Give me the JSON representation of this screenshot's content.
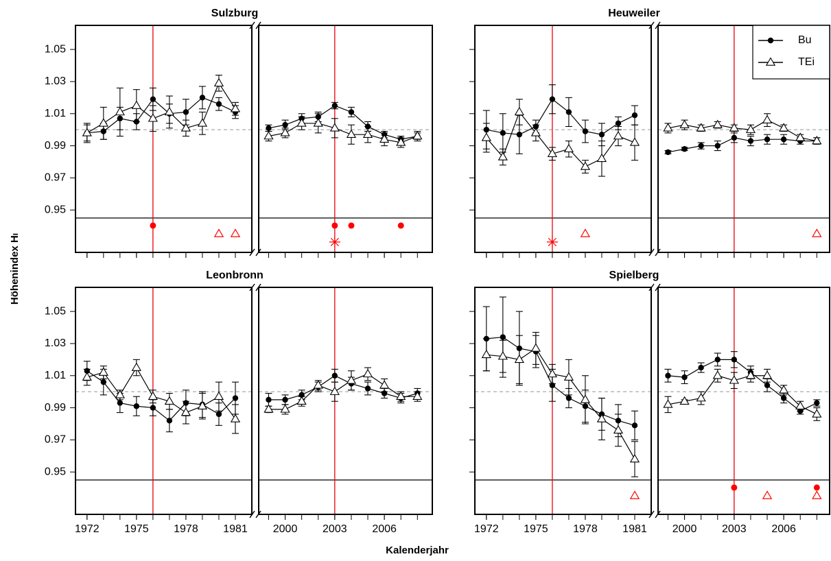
{
  "ylabel": "Höhenindex Hₗ",
  "xlabel": "Kalenderjahr",
  "chart_data": [
    {
      "type": "line",
      "title": "Sulzburg",
      "x": [
        1972,
        1973,
        1974,
        1975,
        1976,
        1977,
        1978,
        1979,
        1980,
        1981,
        1999,
        2000,
        2001,
        2002,
        2003,
        2004,
        2005,
        2006,
        2007,
        2008
      ],
      "xlim": [
        [
          1971.3,
          1982.0
        ],
        [
          1998.4,
          2008.9
        ]
      ],
      "xticks": [
        [
          1972,
          1975,
          1978,
          1981
        ],
        [
          2000,
          2003,
          2006
        ]
      ],
      "ylim": [
        0.9236,
        1.065
      ],
      "yticks": [
        0.95,
        0.97,
        0.99,
        1.01,
        1.03,
        1.05
      ],
      "ytick_labels": true,
      "xtick_labels": false,
      "reference_line": 1.0,
      "threshold_line": 0.945,
      "vlines": [
        1976,
        2003
      ],
      "vline_color": "#e8000b",
      "series": [
        {
          "marker": "circle",
          "color": "#000000",
          "values": [
            0.998,
            0.999,
            1.007,
            1.005,
            1.019,
            1.01,
            1.011,
            1.02,
            1.016,
            1.011,
            1.001,
            1.003,
            1.007,
            1.008,
            1.015,
            1.011,
            1.002,
            0.997,
            0.994,
            0.996
          ],
          "errors": [
            0.005,
            0.005,
            0.007,
            0.005,
            0.007,
            0.006,
            0.008,
            0.007,
            0.004,
            0.004,
            0.002,
            0.003,
            0.003,
            0.003,
            0.002,
            0.003,
            0.003,
            0.002,
            0.002,
            0.002
          ]
        },
        {
          "marker": "triangle",
          "color": "#000000",
          "values": [
            0.998,
            1.004,
            1.011,
            1.015,
            1.007,
            1.011,
            1.001,
            1.004,
            1.029,
            1.013,
            0.996,
            0.998,
            1.004,
            1.004,
            1.001,
            0.997,
            0.997,
            0.994,
            0.992,
            0.996
          ],
          "errors": [
            0.006,
            0.01,
            0.015,
            0.01,
            0.008,
            0.01,
            0.005,
            0.007,
            0.005,
            0.004,
            0.003,
            0.003,
            0.004,
            0.006,
            0.006,
            0.006,
            0.005,
            0.004,
            0.003,
            0.003
          ]
        }
      ],
      "signal_color": "#ff0000",
      "signals": [
        {
          "kind": "dot",
          "years": [
            1976,
            2003,
            2004,
            2007
          ]
        },
        {
          "kind": "triangle",
          "years": [
            1980,
            1981
          ]
        },
        {
          "kind": "star",
          "years": [
            2003
          ]
        }
      ]
    },
    {
      "type": "line",
      "title": "Heuweiler",
      "x": [
        1972,
        1973,
        1974,
        1975,
        1976,
        1977,
        1978,
        1979,
        1980,
        1981,
        1999,
        2000,
        2001,
        2002,
        2003,
        2004,
        2005,
        2006,
        2007,
        2008
      ],
      "xlim": [
        [
          1971.3,
          1982.0
        ],
        [
          1998.4,
          2008.9
        ]
      ],
      "xticks": [
        [
          1972,
          1975,
          1978,
          1981
        ],
        [
          2000,
          2003,
          2006
        ]
      ],
      "ylim": [
        0.9236,
        1.065
      ],
      "yticks": [
        0.95,
        0.97,
        0.99,
        1.01,
        1.03,
        1.05
      ],
      "ytick_labels": false,
      "xtick_labels": false,
      "reference_line": 1.0,
      "threshold_line": 0.945,
      "vlines": [
        1976,
        2003
      ],
      "vline_color": "#e8000b",
      "legend": "topright",
      "series": [
        {
          "name": "Bu",
          "marker": "circle",
          "color": "#000000",
          "values": [
            1.0,
            0.998,
            0.997,
            1.002,
            1.019,
            1.011,
            0.999,
            0.997,
            1.004,
            1.009,
            0.986,
            0.988,
            0.99,
            0.99,
            0.995,
            0.993,
            0.994,
            0.994,
            0.993,
            0.993
          ],
          "errors": [
            0.012,
            0.012,
            0.012,
            0.004,
            0.009,
            0.009,
            0.007,
            0.007,
            0.004,
            0.006,
            0.001,
            0.001,
            0.002,
            0.003,
            0.003,
            0.003,
            0.003,
            0.003,
            0.002,
            0.002
          ]
        },
        {
          "name": "TEi",
          "marker": "triangle",
          "color": "#000000",
          "values": [
            0.995,
            0.983,
            1.011,
            0.998,
            0.985,
            0.988,
            0.977,
            0.982,
            0.996,
            0.992,
            1.001,
            1.003,
            1.001,
            1.003,
            1.001,
            1.0,
            1.006,
            1.001,
            0.995,
            0.993
          ],
          "errors": [
            0.009,
            0.005,
            0.008,
            0.005,
            0.004,
            0.005,
            0.004,
            0.011,
            0.006,
            0.011,
            0.003,
            0.003,
            0.002,
            0.002,
            0.002,
            0.003,
            0.004,
            0.002,
            0.002,
            0.002
          ]
        }
      ],
      "signal_color": "#ff0000",
      "signals": [
        {
          "kind": "triangle",
          "years": [
            1978,
            2008
          ]
        },
        {
          "kind": "star",
          "years": [
            1976
          ]
        }
      ]
    },
    {
      "type": "line",
      "title": "Leonbronn",
      "x": [
        1972,
        1973,
        1974,
        1975,
        1976,
        1977,
        1978,
        1979,
        1980,
        1981,
        1999,
        2000,
        2001,
        2002,
        2003,
        2004,
        2005,
        2006,
        2007,
        2008
      ],
      "xlim": [
        [
          1971.3,
          1982.0
        ],
        [
          1998.4,
          2008.9
        ]
      ],
      "xticks": [
        [
          1972,
          1975,
          1978,
          1981
        ],
        [
          2000,
          2003,
          2006
        ]
      ],
      "ylim": [
        0.9236,
        1.065
      ],
      "yticks": [
        0.95,
        0.97,
        0.99,
        1.01,
        1.03,
        1.05
      ],
      "ytick_labels": true,
      "xtick_labels": true,
      "reference_line": 1.0,
      "threshold_line": 0.945,
      "vlines": [
        1976,
        2003
      ],
      "vline_color": "#e8000b",
      "series": [
        {
          "marker": "circle",
          "color": "#000000",
          "values": [
            1.013,
            1.006,
            0.993,
            0.991,
            0.99,
            0.982,
            0.993,
            0.992,
            0.986,
            0.996,
            0.995,
            0.995,
            0.998,
            1.003,
            1.01,
            1.005,
            1.002,
            0.999,
            0.996,
            0.999
          ],
          "errors": [
            0.006,
            0.008,
            0.006,
            0.006,
            0.005,
            0.007,
            0.008,
            0.008,
            0.007,
            0.01,
            0.004,
            0.003,
            0.003,
            0.003,
            0.004,
            0.004,
            0.004,
            0.003,
            0.003,
            0.003
          ]
        },
        {
          "marker": "triangle",
          "color": "#000000",
          "values": [
            1.009,
            1.012,
            0.998,
            1.015,
            0.997,
            0.994,
            0.987,
            0.991,
            0.997,
            0.983,
            0.989,
            0.989,
            0.994,
            1.004,
            1.0,
            1.007,
            1.011,
            1.004,
            0.997,
            0.997
          ],
          "errors": [
            0.005,
            0.004,
            0.003,
            0.005,
            0.004,
            0.005,
            0.007,
            0.008,
            0.009,
            0.009,
            0.002,
            0.003,
            0.003,
            0.003,
            0.006,
            0.006,
            0.004,
            0.004,
            0.003,
            0.003
          ]
        }
      ],
      "signal_color": "#ff0000",
      "signals": []
    },
    {
      "type": "line",
      "title": "Spielberg",
      "x": [
        1972,
        1973,
        1974,
        1975,
        1976,
        1977,
        1978,
        1979,
        1980,
        1981,
        1999,
        2000,
        2001,
        2002,
        2003,
        2004,
        2005,
        2006,
        2007,
        2008
      ],
      "xlim": [
        [
          1971.3,
          1982.0
        ],
        [
          1998.4,
          2008.9
        ]
      ],
      "xticks": [
        [
          1972,
          1975,
          1978,
          1981
        ],
        [
          2000,
          2003,
          2006
        ]
      ],
      "ylim": [
        0.9236,
        1.065
      ],
      "yticks": [
        0.95,
        0.97,
        0.99,
        1.01,
        1.03,
        1.05
      ],
      "ytick_labels": false,
      "xtick_labels": true,
      "reference_line": 1.0,
      "threshold_line": 0.945,
      "vlines": [
        1976,
        2003
      ],
      "vline_color": "#e8000b",
      "series": [
        {
          "marker": "circle",
          "color": "#000000",
          "values": [
            1.033,
            1.034,
            1.027,
            1.025,
            1.004,
            0.996,
            0.991,
            0.986,
            0.982,
            0.979,
            1.01,
            1.009,
            1.015,
            1.02,
            1.02,
            1.012,
            1.004,
            0.996,
            0.988,
            0.993
          ],
          "errors": [
            0.02,
            0.025,
            0.023,
            0.01,
            0.01,
            0.006,
            0.01,
            0.01,
            0.01,
            0.009,
            0.004,
            0.004,
            0.003,
            0.004,
            0.005,
            0.004,
            0.004,
            0.003,
            0.002,
            0.002
          ]
        },
        {
          "marker": "triangle",
          "color": "#000000",
          "values": [
            1.023,
            1.022,
            1.02,
            1.027,
            1.011,
            1.009,
            0.995,
            0.983,
            0.976,
            0.958,
            0.992,
            0.994,
            0.996,
            1.01,
            1.007,
            1.01,
            1.01,
            1.001,
            0.991,
            0.986
          ],
          "errors": [
            0.01,
            0.01,
            0.015,
            0.01,
            0.006,
            0.011,
            0.015,
            0.013,
            0.01,
            0.011,
            0.005,
            0.001,
            0.004,
            0.004,
            0.005,
            0.004,
            0.004,
            0.003,
            0.003,
            0.004
          ]
        }
      ],
      "signal_color": "#ff0000",
      "signals": [
        {
          "kind": "dot",
          "years": [
            2003,
            2008
          ]
        },
        {
          "kind": "triangle",
          "years": [
            1981,
            2005,
            2008
          ]
        }
      ]
    }
  ]
}
